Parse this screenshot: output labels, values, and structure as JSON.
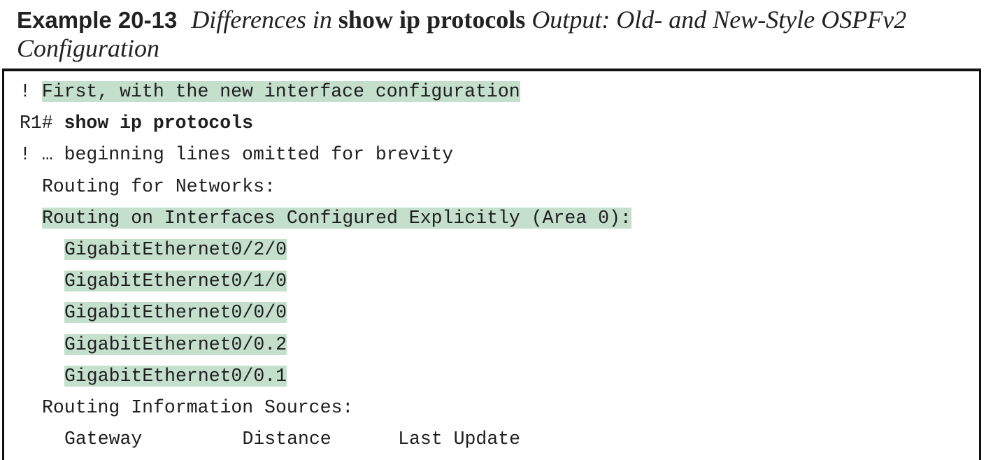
{
  "caption": {
    "label": "Example 20-13",
    "part1": "Differences in",
    "part2": "show ip protocols",
    "part3": "Output: Old- and New-Style OSPFv2 Configuration"
  },
  "listing": {
    "comment_bang": "! ",
    "comment_first": "First, with the new interface configuration",
    "prompt": "R1# ",
    "command": "show ip protocols",
    "omitted": "! … beginning lines omitted for brevity",
    "routing_networks": "Routing for Networks:",
    "routing_interfaces": "Routing on Interfaces Configured Explicitly (Area 0):",
    "interfaces": [
      "GigabitEthernet0/2/0",
      "GigabitEthernet0/1/0",
      "GigabitEthernet0/0/0",
      "GigabitEthernet0/0.2",
      "GigabitEthernet0/0.1"
    ],
    "info_sources": "Routing Information Sources:",
    "columns": {
      "gateway": "Gateway",
      "distance": "Distance",
      "last_update": "Last Update"
    }
  },
  "colors": {
    "highlight": "#c4dfcc",
    "border": "#111111"
  }
}
